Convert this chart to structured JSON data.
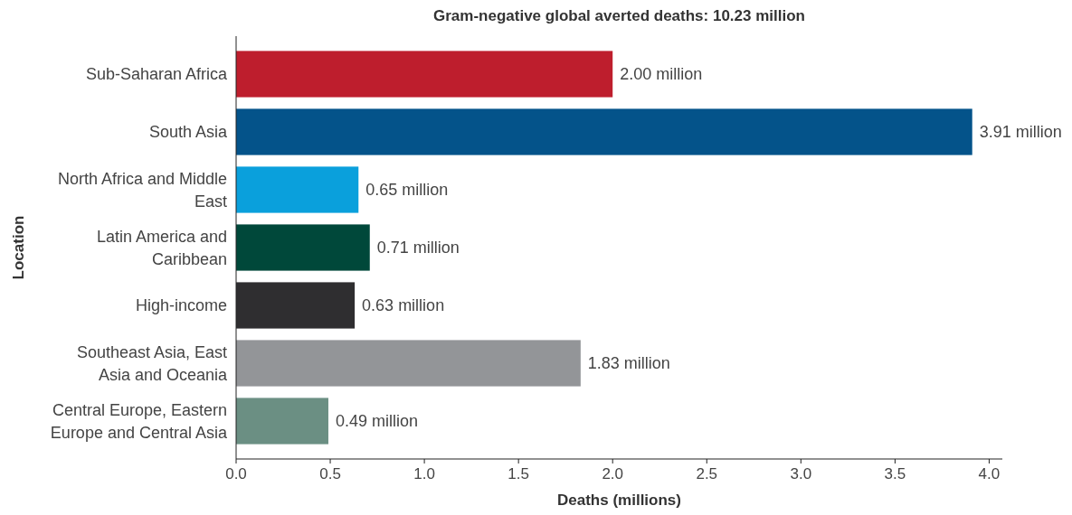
{
  "chart_data": {
    "type": "bar",
    "orientation": "horizontal",
    "title": "Gram-negative global averted deaths: 10.23 million",
    "xlabel": "Deaths (millions)",
    "ylabel": "Location",
    "categories": [
      "Sub-Saharan Africa",
      "South Asia",
      "North Africa and Middle East",
      "Latin America and Caribbean",
      "High-income",
      "Southeast Asia, East Asia and Oceania",
      "Central Europe, Eastern Europe and Central Asia"
    ],
    "values": [
      2.0,
      3.91,
      0.65,
      0.71,
      0.63,
      1.83,
      0.49
    ],
    "value_labels": [
      "2.00 million",
      "3.91 million",
      "0.65 million",
      "0.71 million",
      "0.63 million",
      "1.83 million",
      "0.49 million"
    ],
    "colors": [
      "#be1e2d",
      "#04538a",
      "#0aa0dc",
      "#00483a",
      "#2f2e30",
      "#939598",
      "#6b8f83"
    ],
    "xlim": [
      0,
      4.07
    ],
    "xticks": [
      {
        "value": 0,
        "label": "0.0"
      },
      0.5,
      {
        "value": 1,
        "label": "1.0"
      },
      1.5,
      {
        "value": 2,
        "label": "2.0"
      },
      2.5,
      {
        "value": 3,
        "label": "3.0"
      },
      3.5,
      {
        "value": 4,
        "label": "4.0"
      }
    ]
  }
}
